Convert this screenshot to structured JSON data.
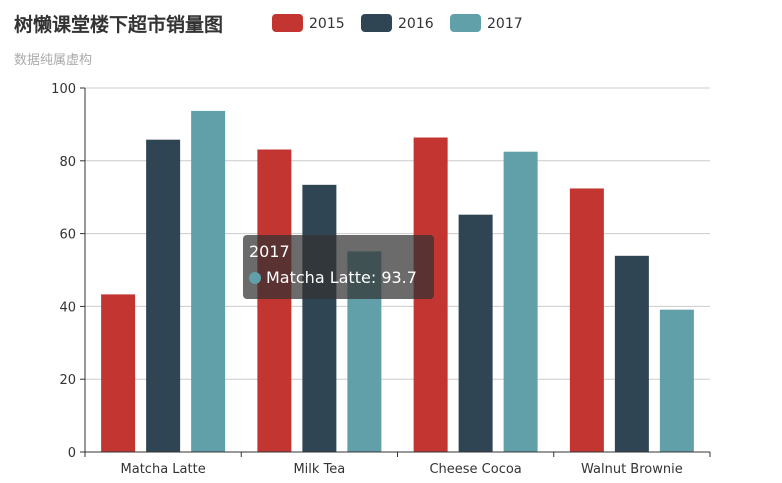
{
  "chart_data": {
    "type": "bar",
    "title": "树懒课堂楼下超市销量图",
    "subtitle": "数据纯属虚构",
    "categories": [
      "Matcha Latte",
      "Milk Tea",
      "Cheese Cocoa",
      "Walnut Brownie"
    ],
    "series": [
      {
        "name": "2015",
        "color": "#c23531",
        "values": [
          43.3,
          83.1,
          86.4,
          72.4
        ]
      },
      {
        "name": "2016",
        "color": "#2f4554",
        "values": [
          85.8,
          73.4,
          65.2,
          53.9
        ]
      },
      {
        "name": "2017",
        "color": "#61a0a8",
        "values": [
          93.7,
          55.1,
          82.5,
          39.1
        ]
      }
    ],
    "ylim": [
      0,
      100
    ],
    "yticks": [
      0,
      20,
      40,
      60,
      80,
      100
    ],
    "grid": true,
    "legend_position": "top"
  },
  "tooltip": {
    "title": "2017",
    "label": "Matcha Latte",
    "value": "93.7",
    "color": "#61a0a8"
  }
}
